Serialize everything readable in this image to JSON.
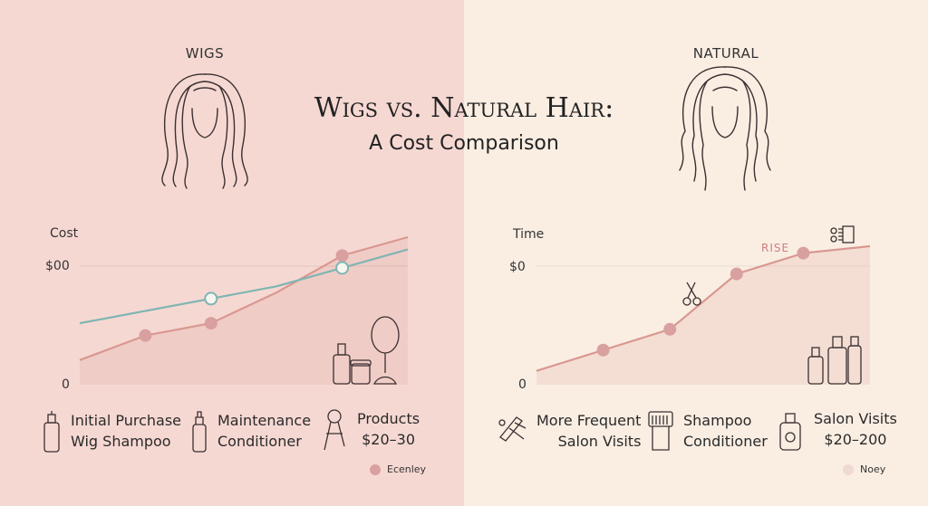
{
  "title": {
    "line1": "Wigs vs. Natural Hair:",
    "line2": "A Cost Comparison"
  },
  "labels": {
    "left": "WIGS",
    "right": "NATURAL"
  },
  "colors": {
    "left_bg": "#f6d8d3",
    "right_bg": "#faeee3",
    "pink": "#d99891",
    "teal": "#7fb5b2",
    "dot": "#d9a0a0"
  },
  "chart_data": [
    {
      "type": "line",
      "ylabel": "Cost",
      "yticks": [
        "$00",
        "0"
      ],
      "series": [
        {
          "color": "pink",
          "points": [
            [
              0,
              2
            ],
            [
              1,
              4
            ],
            [
              2,
              5
            ],
            [
              3,
              7.5
            ],
            [
              4,
              10.5
            ],
            [
              5,
              12
            ]
          ]
        },
        {
          "color": "teal",
          "points": [
            [
              0,
              5
            ],
            [
              2,
              7
            ],
            [
              3,
              8
            ],
            [
              4,
              9.5
            ],
            [
              5,
              11
            ]
          ]
        }
      ],
      "markers": [
        {
          "series": 0,
          "x": 1,
          "style": "filled"
        },
        {
          "series": 0,
          "x": 2,
          "style": "filled"
        },
        {
          "series": 0,
          "x": 4,
          "style": "filled"
        },
        {
          "series": 1,
          "x": 2,
          "style": "hollow"
        },
        {
          "series": 1,
          "x": 4,
          "style": "hollow"
        }
      ],
      "legend": [
        {
          "icon": "bottle-icon",
          "lines": [
            "Initial Purchase",
            "Wig Shampoo"
          ]
        },
        {
          "icon": "conditioner-icon",
          "lines": [
            "Maintenance",
            "Conditioner"
          ]
        },
        {
          "icon": "brush-icon",
          "lines": [
            "Products",
            "$20–30"
          ]
        }
      ],
      "badge": "Ecenley"
    },
    {
      "type": "area",
      "ylabel": "Time",
      "yticks": [
        "$0",
        "0"
      ],
      "annotation": "RISE",
      "series": [
        {
          "color": "pink",
          "points": [
            [
              0,
              1
            ],
            [
              1,
              2.5
            ],
            [
              2,
              4
            ],
            [
              3,
              8
            ],
            [
              4,
              9.5
            ],
            [
              5,
              10
            ]
          ]
        }
      ],
      "markers": [
        {
          "series": 0,
          "x": 1,
          "style": "filled"
        },
        {
          "series": 0,
          "x": 2,
          "style": "filled"
        },
        {
          "series": 0,
          "x": 3,
          "style": "filled"
        },
        {
          "series": 0,
          "x": 4,
          "style": "filled"
        }
      ],
      "legend": [
        {
          "icon": "hair-tools-icon",
          "lines": [
            "More Frequent",
            "Salon Visits"
          ]
        },
        {
          "icon": "comb-icon",
          "lines": [
            "Shampoo",
            "Conditioner"
          ]
        },
        {
          "icon": "salon-bottles-icon",
          "lines": [
            "Salon Visits",
            "$20–200"
          ]
        }
      ],
      "badge": "Noey"
    }
  ]
}
